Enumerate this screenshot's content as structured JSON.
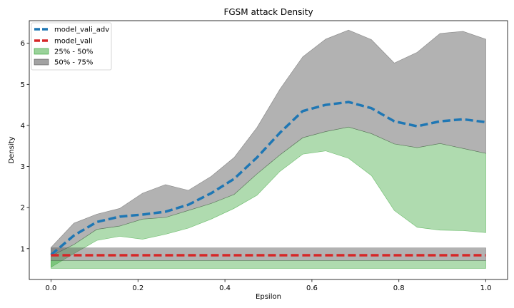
{
  "chart_data": {
    "type": "area",
    "title": "FGSM attack Density",
    "xlabel": "Epsilon",
    "ylabel": "Density",
    "xlim": [
      -0.05,
      1.05
    ],
    "ylim": [
      0.25,
      6.55
    ],
    "xticks": [
      "0.0",
      "0.2",
      "0.4",
      "0.6",
      "0.8",
      "1.0"
    ],
    "yticks": [
      "1",
      "2",
      "3",
      "4",
      "5",
      "6"
    ],
    "grid": false,
    "legend_position": "top-left",
    "x": [
      0.0,
      0.0526,
      0.1053,
      0.1579,
      0.2105,
      0.2632,
      0.3158,
      0.3684,
      0.4211,
      0.4737,
      0.5263,
      0.5789,
      0.6316,
      0.6842,
      0.7368,
      0.7895,
      0.8421,
      0.8947,
      0.9474,
      1.0
    ],
    "series": [
      {
        "name": "model_vali_adv",
        "kind": "line",
        "style": "dashed",
        "color": "#1f77b4",
        "values": [
          0.85,
          1.32,
          1.65,
          1.78,
          1.83,
          1.9,
          2.07,
          2.35,
          2.7,
          3.22,
          3.82,
          4.35,
          4.5,
          4.57,
          4.42,
          4.1,
          3.98,
          4.1,
          4.15,
          4.08
        ]
      },
      {
        "name": "model_vali",
        "kind": "line",
        "style": "dashed",
        "color": "#d62728",
        "values": [
          0.84,
          0.84,
          0.84,
          0.84,
          0.84,
          0.84,
          0.84,
          0.84,
          0.84,
          0.84,
          0.84,
          0.84,
          0.84,
          0.84,
          0.84,
          0.84,
          0.84,
          0.84,
          0.84,
          0.84
        ]
      }
    ],
    "bands": [
      {
        "name": "25% - 50%",
        "color": "#2ca02c",
        "opacity": 0.38,
        "groups": [
          {
            "lower": [
              0.55,
              0.88,
              1.2,
              1.3,
              1.23,
              1.35,
              1.5,
              1.72,
              1.98,
              2.3,
              2.88,
              3.3,
              3.38,
              3.2,
              2.78,
              1.93,
              1.52,
              1.45,
              1.44,
              1.39
            ],
            "upper": [
              0.82,
              1.1,
              1.47,
              1.55,
              1.72,
              1.76,
              1.93,
              2.1,
              2.32,
              2.82,
              3.28,
              3.7,
              3.85,
              3.96,
              3.8,
              3.55,
              3.46,
              3.56,
              3.44,
              3.32
            ]
          },
          {
            "lower": [
              0.52,
              0.52,
              0.52,
              0.52,
              0.52,
              0.52,
              0.52,
              0.52,
              0.52,
              0.52,
              0.52,
              0.52,
              0.52,
              0.52,
              0.52,
              0.52,
              0.52,
              0.52,
              0.52,
              0.52
            ],
            "upper": [
              0.71,
              0.71,
              0.71,
              0.71,
              0.71,
              0.71,
              0.71,
              0.71,
              0.71,
              0.71,
              0.71,
              0.71,
              0.71,
              0.71,
              0.71,
              0.71,
              0.71,
              0.71,
              0.71,
              0.71
            ]
          }
        ]
      },
      {
        "name": "50% - 75%",
        "color": "#555555",
        "opacity": 0.45,
        "groups": [
          {
            "lower": [
              0.82,
              1.1,
              1.47,
              1.55,
              1.72,
              1.76,
              1.93,
              2.1,
              2.32,
              2.82,
              3.28,
              3.7,
              3.85,
              3.96,
              3.8,
              3.55,
              3.46,
              3.56,
              3.44,
              3.32
            ],
            "upper": [
              1.03,
              1.62,
              1.84,
              1.98,
              2.35,
              2.56,
              2.42,
              2.76,
              3.22,
              3.95,
              4.88,
              5.67,
              6.1,
              6.32,
              6.09,
              5.52,
              5.78,
              6.24,
              6.29,
              6.1
            ]
          },
          {
            "lower": [
              0.71,
              0.71,
              0.71,
              0.71,
              0.71,
              0.71,
              0.71,
              0.71,
              0.71,
              0.71,
              0.71,
              0.71,
              0.71,
              0.71,
              0.71,
              0.71,
              0.71,
              0.71,
              0.71,
              0.71
            ],
            "upper": [
              1.02,
              1.02,
              1.02,
              1.02,
              1.02,
              1.02,
              1.02,
              1.02,
              1.02,
              1.02,
              1.02,
              1.02,
              1.02,
              1.02,
              1.02,
              1.02,
              1.02,
              1.02,
              1.02,
              1.02
            ]
          }
        ]
      }
    ]
  }
}
